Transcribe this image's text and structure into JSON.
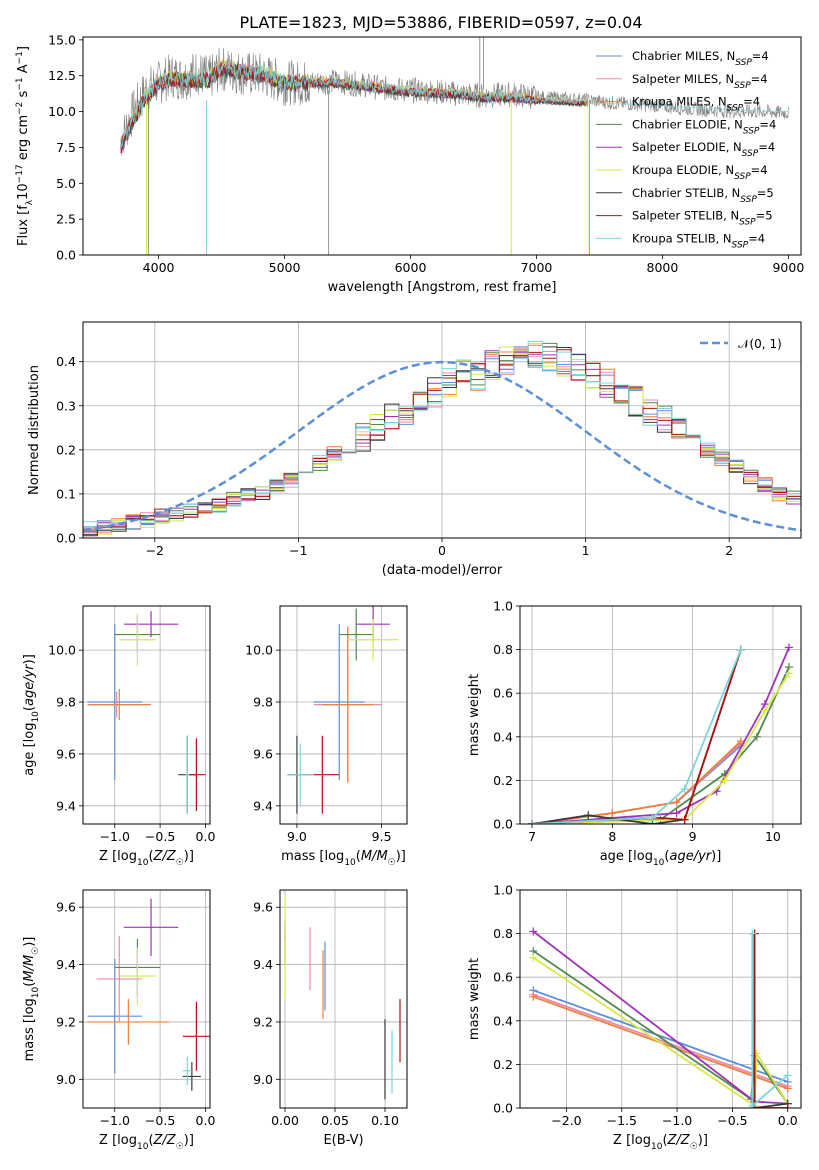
{
  "figure_title": "PLATE=1823, MJD=53886, FIBERID=0597, z=0.04",
  "model_colors": {
    "Chabrier MILES": "#5b8fd8",
    "Salpeter MILES": "#e88ab0",
    "Kroupa MILES": "#ef7f3a",
    "Chabrier ELODIE": "#4f8a4f",
    "Salpeter ELODIE": "#a033b8",
    "Kroupa ELODIE": "#d8e84a",
    "Chabrier STELIB": "#3a3a3a",
    "Salpeter STELIB": "#b01010",
    "Kroupa STELIB": "#7fd4dc"
  },
  "chart_data": [
    {
      "id": "spectrum",
      "type": "line",
      "title": "PLATE=1823, MJD=53886, FIBERID=0597, z=0.04",
      "xlabel": "wavelength [Angstrom, rest frame]",
      "ylabel": "Flux [f_λ 10^-17 erg cm^-2 s^-1 A^-1]",
      "xlim": [
        3400,
        9100
      ],
      "ylim": [
        0,
        15.2
      ],
      "xticks": [
        4000,
        5000,
        6000,
        7000,
        8000,
        9000
      ],
      "yticks": [
        0.0,
        2.5,
        5.0,
        7.5,
        10.0,
        12.5,
        15.0
      ],
      "ytick_labels": [
        "0.0",
        "2.5",
        "5.0",
        "7.5",
        "10.0",
        "12.5",
        "15.0"
      ],
      "grid": false,
      "legend_position": "top-right",
      "legend": [
        {
          "label": "Chabrier MILES, N",
          "ssp": "4",
          "model": "Chabrier MILES"
        },
        {
          "label": "Salpeter MILES, N",
          "ssp": "4",
          "model": "Salpeter MILES"
        },
        {
          "label": "Kroupa MILES, N",
          "ssp": "4",
          "model": "Kroupa MILES"
        },
        {
          "label": "Chabrier ELODIE, N",
          "ssp": "4",
          "model": "Chabrier ELODIE"
        },
        {
          "label": "Salpeter ELODIE, N",
          "ssp": "4",
          "model": "Salpeter ELODIE"
        },
        {
          "label": "Kroupa ELODIE, N",
          "ssp": "4",
          "model": "Kroupa ELODIE"
        },
        {
          "label": "Chabrier STELIB, N",
          "ssp": "5",
          "model": "Chabrier STELIB"
        },
        {
          "label": "Salpeter STELIB, N",
          "ssp": "5",
          "model": "Salpeter STELIB"
        },
        {
          "label": "Kroupa STELIB, N",
          "ssp": "4",
          "model": "Kroupa STELIB"
        }
      ],
      "observed_spectrum": {
        "color": "#808080",
        "x": [
          3700,
          3800,
          3900,
          4000,
          4100,
          4200,
          4300,
          4400,
          4500,
          4600,
          4700,
          4800,
          4900,
          5000,
          5200,
          5400,
          5600,
          5800,
          6000,
          6200,
          6400,
          6600,
          6800,
          7000,
          7200,
          7400,
          7600,
          7800,
          8000,
          8200,
          8400,
          8600,
          8800,
          9000
        ],
        "y": [
          8.0,
          10.0,
          11.5,
          12.0,
          12.5,
          12.3,
          12.8,
          12.3,
          13.0,
          12.8,
          12.6,
          12.6,
          12.3,
          12.0,
          12.0,
          12.1,
          11.9,
          11.6,
          11.5,
          11.4,
          11.2,
          11.1,
          11.2,
          11.0,
          10.9,
          10.8,
          10.6,
          10.5,
          10.4,
          10.2,
          10.1,
          10.0,
          10.0,
          9.9
        ]
      },
      "model_spectrum": {
        "x": [
          3700,
          3800,
          3900,
          4000,
          4100,
          4200,
          4300,
          4400,
          4500,
          4600,
          4700,
          4800,
          4900,
          5000,
          5200,
          5400,
          5600,
          5800,
          6000,
          6200,
          6400,
          6600,
          6800,
          7000,
          7200,
          7400
        ],
        "y": [
          7.5,
          9.5,
          11.0,
          12.0,
          12.3,
          12.2,
          12.2,
          12.2,
          13.1,
          12.9,
          12.7,
          12.6,
          12.3,
          12.0,
          12.0,
          12.0,
          11.8,
          11.6,
          11.4,
          11.3,
          11.2,
          11.0,
          11.0,
          10.8,
          10.7,
          10.6
        ],
        "extended_x": [
          7400,
          7800,
          8200,
          8600,
          9000
        ],
        "extended_y": [
          10.6,
          10.5,
          10.3,
          10.1,
          10.0
        ]
      }
    },
    {
      "id": "residuals",
      "type": "step",
      "xlabel": "(data-model)/error",
      "ylabel": "Normed distribution",
      "xlim": [
        -2.5,
        2.5
      ],
      "ylim": [
        0,
        0.49
      ],
      "xticks": [
        -2,
        -1,
        0,
        1,
        2
      ],
      "yticks": [
        0.0,
        0.1,
        0.2,
        0.3,
        0.4
      ],
      "ytick_labels": [
        "0.0",
        "0.1",
        "0.2",
        "0.3",
        "0.4"
      ],
      "grid": true,
      "legend_position": "top-right",
      "reference_label": "𝒩(0, 1)",
      "reference_color": "#5b8fd8",
      "bin_edges_start": -2.5,
      "bin_width": 0.1,
      "histogram_values": [
        0.02,
        0.025,
        0.03,
        0.035,
        0.04,
        0.05,
        0.055,
        0.06,
        0.07,
        0.075,
        0.09,
        0.095,
        0.1,
        0.12,
        0.13,
        0.15,
        0.17,
        0.19,
        0.21,
        0.23,
        0.25,
        0.27,
        0.29,
        0.31,
        0.33,
        0.35,
        0.37,
        0.37,
        0.39,
        0.4,
        0.41,
        0.42,
        0.41,
        0.4,
        0.39,
        0.37,
        0.35,
        0.33,
        0.31,
        0.29,
        0.27,
        0.24,
        0.22,
        0.2,
        0.18,
        0.16,
        0.14,
        0.12,
        0.1,
        0.09
      ]
    },
    {
      "id": "age-vs-z",
      "type": "errorbar",
      "xlabel": "Z [log10(Z/Z☉)]",
      "ylabel": "age  [log10(age/yr)]",
      "xlim": [
        -1.35,
        0.05
      ],
      "ylim": [
        9.33,
        10.17
      ],
      "xticks": [
        -1.0,
        -0.5,
        0.0
      ],
      "xtick_labels": [
        "−1.0",
        "−0.5",
        "0.0"
      ],
      "yticks": [
        9.4,
        9.6,
        9.8,
        10.0
      ],
      "ytick_labels": [
        "9.4",
        "9.6",
        "9.8",
        "10.0"
      ],
      "grid": true,
      "points": [
        {
          "model": "Chabrier MILES",
          "x": -1.0,
          "y": 9.8,
          "xerr": 0.3,
          "yerr": 0.3
        },
        {
          "model": "Salpeter MILES",
          "x": -0.98,
          "y": 9.79,
          "xerr": 0.3,
          "yerr": 0.05
        },
        {
          "model": "Kroupa MILES",
          "x": -0.95,
          "y": 9.79,
          "xerr": 0.35,
          "yerr": 0.06
        },
        {
          "model": "Chabrier ELODIE",
          "x": -0.75,
          "y": 10.06,
          "xerr": 0.25,
          "yerr": 0.07
        },
        {
          "model": "Salpeter ELODIE",
          "x": -0.6,
          "y": 10.1,
          "xerr": 0.3,
          "yerr": 0.05
        },
        {
          "model": "Kroupa ELODIE",
          "x": -0.75,
          "y": 10.04,
          "xerr": 0.2,
          "yerr": 0.1
        },
        {
          "model": "Chabrier STELIB",
          "x": -0.2,
          "y": 9.52,
          "xerr": 0.1,
          "yerr": 0.15
        },
        {
          "model": "Salpeter STELIB",
          "x": -0.1,
          "y": 9.52,
          "xerr": 0.1,
          "yerr": 0.14
        },
        {
          "model": "Kroupa STELIB",
          "x": -0.2,
          "y": 9.52,
          "xerr": 0.02,
          "yerr": 0.15
        }
      ]
    },
    {
      "id": "age-vs-mass",
      "type": "errorbar",
      "xlabel": "mass [log10(M/M☉)]",
      "ylabel": "",
      "xlim": [
        8.9,
        9.65
      ],
      "ylim": [
        9.33,
        10.17
      ],
      "xticks": [
        9.0,
        9.5
      ],
      "xtick_labels": [
        "9.0",
        "9.5"
      ],
      "yticks": [
        9.4,
        9.6,
        9.8,
        10.0
      ],
      "ytick_labels": [
        "9.4",
        "9.6",
        "9.8",
        "10.0"
      ],
      "grid": true,
      "points": [
        {
          "model": "Chabrier MILES",
          "x": 9.25,
          "y": 9.8,
          "xerr": 0.15,
          "yerr": 0.3
        },
        {
          "model": "Salpeter MILES",
          "x": 9.3,
          "y": 9.79,
          "xerr": 0.2,
          "yerr": 0.3
        },
        {
          "model": "Kroupa MILES",
          "x": 9.3,
          "y": 9.79,
          "xerr": 0.15,
          "yerr": 0.3
        },
        {
          "model": "Chabrier ELODIE",
          "x": 9.35,
          "y": 10.06,
          "xerr": 0.1,
          "yerr": 0.1
        },
        {
          "model": "Salpeter ELODIE",
          "x": 9.45,
          "y": 10.1,
          "xerr": 0.1,
          "yerr": 0.07
        },
        {
          "model": "Kroupa ELODIE",
          "x": 9.45,
          "y": 10.04,
          "xerr": 0.15,
          "yerr": 0.08
        },
        {
          "model": "Chabrier STELIB",
          "x": 9.0,
          "y": 9.52,
          "xerr": 0.05,
          "yerr": 0.15
        },
        {
          "model": "Salpeter STELIB",
          "x": 9.15,
          "y": 9.52,
          "xerr": 0.1,
          "yerr": 0.15
        },
        {
          "model": "Kroupa STELIB",
          "x": 9.02,
          "y": 9.52,
          "xerr": 0.08,
          "yerr": 0.12
        }
      ]
    },
    {
      "id": "mass-weight-vs-age",
      "type": "line",
      "xlabel": "age  [log10(age/yr)]",
      "ylabel": "mass weight",
      "xlim": [
        6.85,
        10.35
      ],
      "ylim": [
        0,
        1
      ],
      "xticks": [
        7,
        8,
        9,
        10
      ],
      "xtick_labels": [
        "7",
        "8",
        "9",
        "10"
      ],
      "yticks": [
        0.0,
        0.2,
        0.4,
        0.6,
        0.8,
        1.0
      ],
      "ytick_labels": [
        "0.0",
        "0.2",
        "0.4",
        "0.6",
        "0.8",
        "1.0"
      ],
      "grid": true,
      "series": [
        {
          "model": "Chabrier MILES",
          "x": [
            7.0,
            8.0,
            8.8,
            9.6
          ],
          "y": [
            0.0,
            0.05,
            0.1,
            0.36
          ]
        },
        {
          "model": "Salpeter MILES",
          "x": [
            7.0,
            8.0,
            8.8,
            9.6
          ],
          "y": [
            0.0,
            0.05,
            0.1,
            0.37
          ]
        },
        {
          "model": "Kroupa MILES",
          "x": [
            7.0,
            8.0,
            8.8,
            9.6
          ],
          "y": [
            0.0,
            0.05,
            0.1,
            0.38
          ]
        },
        {
          "model": "Chabrier ELODIE",
          "x": [
            7.0,
            8.6,
            9.4,
            9.8,
            10.2
          ],
          "y": [
            0.0,
            0.02,
            0.23,
            0.4,
            0.72
          ]
        },
        {
          "model": "Salpeter ELODIE",
          "x": [
            7.0,
            8.8,
            9.3,
            9.9,
            10.2
          ],
          "y": [
            0.0,
            0.05,
            0.15,
            0.55,
            0.81
          ]
        },
        {
          "model": "Kroupa ELODIE",
          "x": [
            7.0,
            8.9,
            9.4,
            9.9,
            10.2
          ],
          "y": [
            0.0,
            0.02,
            0.2,
            0.52,
            0.69
          ]
        },
        {
          "model": "Chabrier STELIB",
          "x": [
            7.0,
            7.7,
            8.5,
            8.9,
            9.6
          ],
          "y": [
            0.0,
            0.04,
            0.0,
            0.02,
            0.8
          ]
        },
        {
          "model": "Salpeter STELIB",
          "x": [
            7.0,
            8.5,
            8.9,
            9.6
          ],
          "y": [
            0.0,
            0.03,
            0.02,
            0.8
          ]
        },
        {
          "model": "Kroupa STELIB",
          "x": [
            7.0,
            8.5,
            8.9,
            9.6
          ],
          "y": [
            0.0,
            0.03,
            0.16,
            0.8
          ]
        }
      ]
    },
    {
      "id": "mass-vs-z",
      "type": "errorbar",
      "xlabel": "Z [log10(Z/Z☉)]",
      "ylabel": "mass [log10(M/M☉)]",
      "xlim": [
        -1.35,
        0.05
      ],
      "ylim": [
        8.9,
        9.66
      ],
      "xticks": [
        -1.0,
        -0.5,
        0.0
      ],
      "xtick_labels": [
        "−1.0",
        "−0.5",
        "0.0"
      ],
      "yticks": [
        9.0,
        9.2,
        9.4,
        9.6
      ],
      "ytick_labels": [
        "9.0",
        "9.2",
        "9.4",
        "9.6"
      ],
      "grid": true,
      "points": [
        {
          "model": "Chabrier MILES",
          "x": -1.0,
          "y": 9.22,
          "xerr": 0.3,
          "yerr": 0.2
        },
        {
          "model": "Salpeter MILES",
          "x": -0.95,
          "y": 9.35,
          "xerr": 0.25,
          "yerr": 0.15
        },
        {
          "model": "Kroupa MILES",
          "x": -0.85,
          "y": 9.2,
          "xerr": 0.45,
          "yerr": 0.08
        },
        {
          "model": "Chabrier ELODIE",
          "x": -0.75,
          "y": 9.39,
          "xerr": 0.25,
          "yerr": 0.1
        },
        {
          "model": "Salpeter ELODIE",
          "x": -0.6,
          "y": 9.53,
          "xerr": 0.3,
          "yerr": 0.1
        },
        {
          "model": "Kroupa ELODIE",
          "x": -0.75,
          "y": 9.36,
          "xerr": 0.2,
          "yerr": 0.1
        },
        {
          "model": "Chabrier STELIB",
          "x": -0.15,
          "y": 9.01,
          "xerr": 0.1,
          "yerr": 0.05
        },
        {
          "model": "Salpeter STELIB",
          "x": -0.1,
          "y": 9.15,
          "xerr": 0.15,
          "yerr": 0.12
        },
        {
          "model": "Kroupa STELIB",
          "x": -0.2,
          "y": 9.03,
          "xerr": 0.05,
          "yerr": 0.05
        }
      ]
    },
    {
      "id": "mass-vs-ebv",
      "type": "errorbar",
      "xlabel": "E(B-V)",
      "ylabel": "",
      "xlim": [
        -0.005,
        0.122
      ],
      "ylim": [
        8.9,
        9.66
      ],
      "xticks": [
        0.0,
        0.05,
        0.1
      ],
      "xtick_labels": [
        "0.00",
        "0.05",
        "0.10"
      ],
      "yticks": [
        9.0,
        9.2,
        9.4,
        9.6
      ],
      "ytick_labels": [
        "9.0",
        "9.2",
        "9.4",
        "9.6"
      ],
      "grid": true,
      "points": [
        {
          "model": "Chabrier MILES",
          "x": 0.04,
          "y": 9.36,
          "xerr": 0.0,
          "yerr": 0.12
        },
        {
          "model": "Salpeter MILES",
          "x": 0.025,
          "y": 9.42,
          "xerr": 0.0,
          "yerr": 0.11
        },
        {
          "model": "Kroupa MILES",
          "x": 0.038,
          "y": 9.33,
          "xerr": 0.0,
          "yerr": 0.12
        },
        {
          "model": "Chabrier ELODIE",
          "x": 0.0,
          "y": 9.45,
          "xerr": 0.0,
          "yerr": 0.05
        },
        {
          "model": "Salpeter ELODIE",
          "x": 0.0,
          "y": 9.52,
          "xerr": 0.0,
          "yerr": 0.03
        },
        {
          "model": "Kroupa ELODIE",
          "x": 0.0,
          "y": 9.46,
          "xerr": 0.0,
          "yerr": 0.18
        },
        {
          "model": "Chabrier STELIB",
          "x": 0.1,
          "y": 9.07,
          "xerr": 0.0,
          "yerr": 0.14
        },
        {
          "model": "Salpeter STELIB",
          "x": 0.115,
          "y": 9.17,
          "xerr": 0.0,
          "yerr": 0.11
        },
        {
          "model": "Kroupa STELIB",
          "x": 0.107,
          "y": 9.06,
          "xerr": 0.0,
          "yerr": 0.11
        }
      ]
    },
    {
      "id": "mass-weight-vs-z",
      "type": "line",
      "xlabel": "Z [log10(Z/Z☉)]",
      "ylabel": "mass weight",
      "xlim": [
        -2.42,
        0.12
      ],
      "ylim": [
        0,
        1
      ],
      "xticks": [
        -2.0,
        -1.5,
        -1.0,
        -0.5,
        0.0
      ],
      "xtick_labels": [
        "−2.0",
        "−1.5",
        "−1.0",
        "−0.5",
        "0.0"
      ],
      "yticks": [
        0.0,
        0.2,
        0.4,
        0.6,
        0.8,
        1.0
      ],
      "ytick_labels": [
        "0.0",
        "0.2",
        "0.4",
        "0.6",
        "0.8",
        "1.0"
      ],
      "grid": true,
      "series": [
        {
          "model": "Chabrier MILES",
          "x": [
            -2.3,
            0.0
          ],
          "y": [
            0.54,
            0.12
          ]
        },
        {
          "model": "Salpeter MILES",
          "x": [
            -2.3,
            0.0
          ],
          "y": [
            0.52,
            0.1
          ]
        },
        {
          "model": "Kroupa MILES",
          "x": [
            -2.3,
            0.0
          ],
          "y": [
            0.51,
            0.09
          ]
        },
        {
          "model": "Chabrier ELODIE",
          "x": [
            -2.3,
            -0.33,
            -0.3,
            0.0
          ],
          "y": [
            0.72,
            0.04,
            0.24,
            0.02
          ]
        },
        {
          "model": "Salpeter ELODIE",
          "x": [
            -2.3,
            -0.3,
            0.0
          ],
          "y": [
            0.81,
            0.03,
            0.02
          ]
        },
        {
          "model": "Kroupa ELODIE",
          "x": [
            -2.3,
            -0.3,
            -0.28,
            0.0
          ],
          "y": [
            0.69,
            0.01,
            0.25,
            0.02
          ]
        },
        {
          "model": "Chabrier STELIB",
          "x": [
            -0.3,
            -0.3,
            0.0
          ],
          "y": [
            0.8,
            0.0,
            0.02
          ]
        },
        {
          "model": "Salpeter STELIB",
          "x": [
            -0.3,
            -0.3,
            0.0
          ],
          "y": [
            0.8,
            0.0,
            0.0
          ]
        },
        {
          "model": "Kroupa STELIB",
          "x": [
            -0.32,
            -0.32,
            0.0
          ],
          "y": [
            0.8,
            0.01,
            0.15
          ]
        }
      ]
    }
  ]
}
